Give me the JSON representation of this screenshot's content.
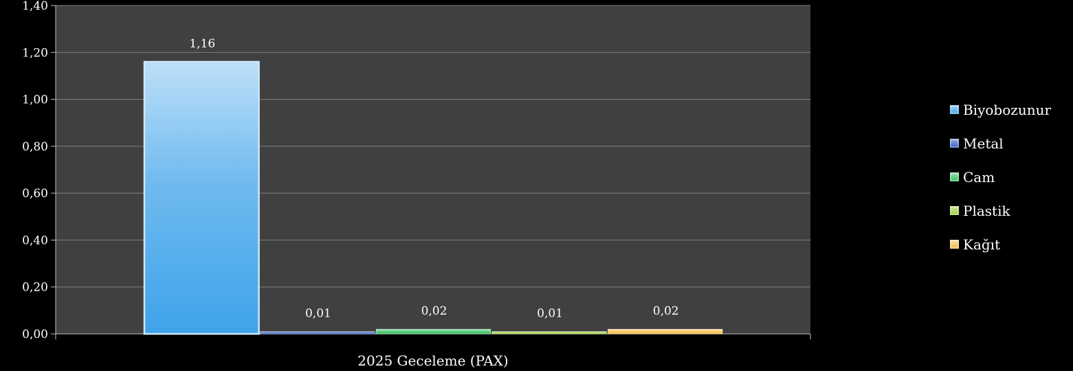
{
  "chart_data": {
    "type": "bar",
    "categories": [
      "2025 Geceleme (PAX)"
    ],
    "series": [
      {
        "name": "Biyobozunur",
        "values": [
          1.16
        ],
        "label": "1,16",
        "color": "#3fa3ea"
      },
      {
        "name": "Metal",
        "values": [
          0.01
        ],
        "label": "0,01",
        "color": "#2f5bbf"
      },
      {
        "name": "Cam",
        "values": [
          0.02
        ],
        "label": "0,02",
        "color": "#2fbf5a"
      },
      {
        "name": "Plastik",
        "values": [
          0.01
        ],
        "label": "0,01",
        "color": "#9acd32"
      },
      {
        "name": "Kağıt",
        "values": [
          0.02
        ],
        "label": "0,02",
        "color": "#f5b942"
      }
    ],
    "ylim": [
      0,
      1.4
    ],
    "yticks": [
      "0,00",
      "0,20",
      "0,40",
      "0,60",
      "0,80",
      "1,00",
      "1,20",
      "1,40"
    ],
    "grid": true,
    "legend_position": "right",
    "plot_background": "#404040",
    "grid_color": "#7f7f7f"
  }
}
